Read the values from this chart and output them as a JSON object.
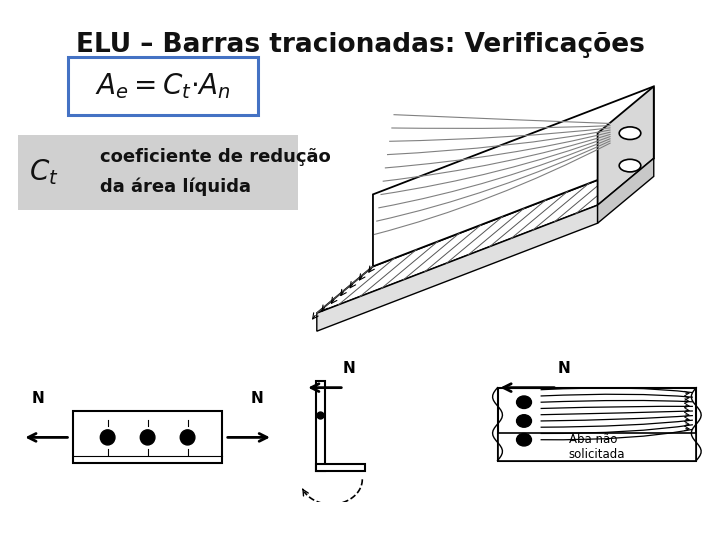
{
  "title": "ELU – Barras tracionadas: Verificações",
  "formula": "$A_e = C_t{\\cdot}A_n$",
  "ct_label": "$C_t$",
  "desc_text1": "coeficiente de redução",
  "desc_text2": "da área líquida",
  "aba_line1": "Aba não",
  "aba_line2": "solicitada",
  "title_fontsize": 19,
  "formula_fontsize": 20,
  "ct_fontsize": 20,
  "desc_fontsize": 13,
  "formula_box_color": "#4472C4",
  "formula_box_fill": "#ffffff",
  "desc_box_color": "#d0d0d0",
  "background_color": "#ffffff",
  "text_color": "#111111"
}
